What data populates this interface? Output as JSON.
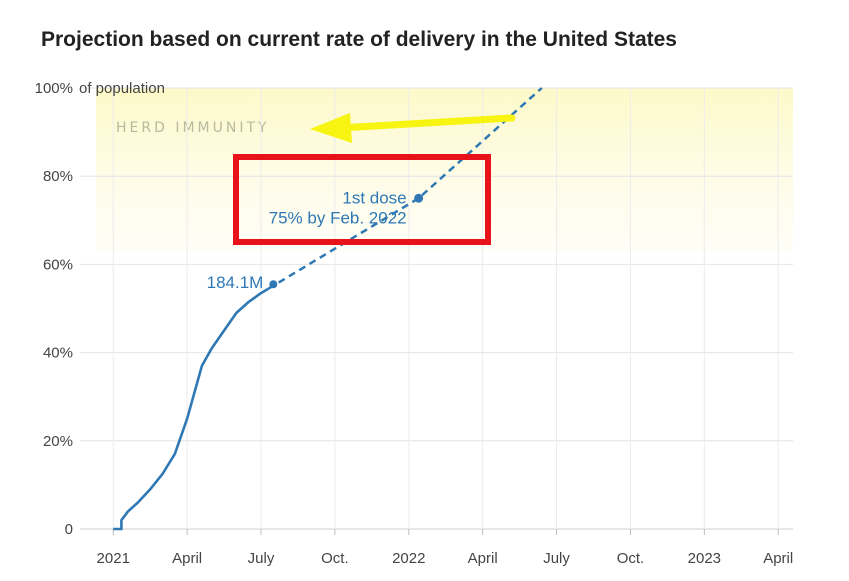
{
  "chart_data": {
    "type": "line",
    "title": "Projection based on current rate of delivery in the United States",
    "x_ticks": [
      "2021",
      "April",
      "July",
      "Oct.",
      "2022",
      "April",
      "July",
      "Oct.",
      "2023",
      "April"
    ],
    "y_ticks": [
      {
        "value": 100,
        "label": "100%",
        "suffix": "of population"
      },
      {
        "value": 80,
        "label": "80%"
      },
      {
        "value": 60,
        "label": "60%"
      },
      {
        "value": 40,
        "label": "40%"
      },
      {
        "value": 20,
        "label": "20%"
      },
      {
        "value": 0,
        "label": "0"
      }
    ],
    "ylim": [
      0,
      100
    ],
    "x_unit": "months since Jan. 2021",
    "xlim": [
      -0.7,
      27.6
    ],
    "grid": true,
    "herd_band": {
      "label": "HERD IMMUNITY",
      "from": 63,
      "to": 100,
      "color": "#fdfbd8"
    },
    "series": [
      {
        "style": "solid",
        "color": "#2f78b4",
        "points": [
          [
            0,
            0
          ],
          [
            0.33,
            0
          ],
          [
            0.33,
            2
          ],
          [
            0.6,
            4
          ],
          [
            1,
            6
          ],
          [
            1.5,
            9
          ],
          [
            2,
            12.5
          ],
          [
            2.5,
            17
          ],
          [
            3,
            25
          ],
          [
            3.3,
            31
          ],
          [
            3.6,
            37
          ],
          [
            4,
            41
          ],
          [
            4.5,
            45
          ],
          [
            5,
            49
          ],
          [
            5.5,
            51.5
          ],
          [
            6,
            53.5
          ],
          [
            6.3,
            54.5
          ]
        ]
      },
      {
        "style": "dashed",
        "color": "#2f78b4",
        "points": [
          [
            6.3,
            54.5
          ],
          [
            12.4,
            75
          ],
          [
            17.4,
            100
          ]
        ]
      }
    ],
    "markers": [
      {
        "x": 6.5,
        "y": 55.5,
        "label": "184.1M"
      },
      {
        "x": 12.4,
        "y": 75,
        "label": "1st dose",
        "sublabel": "75% by Feb. 2022"
      }
    ]
  },
  "overlays": {
    "highlight_box_color": "#e8121a",
    "arrow_color": "#f7f411"
  }
}
